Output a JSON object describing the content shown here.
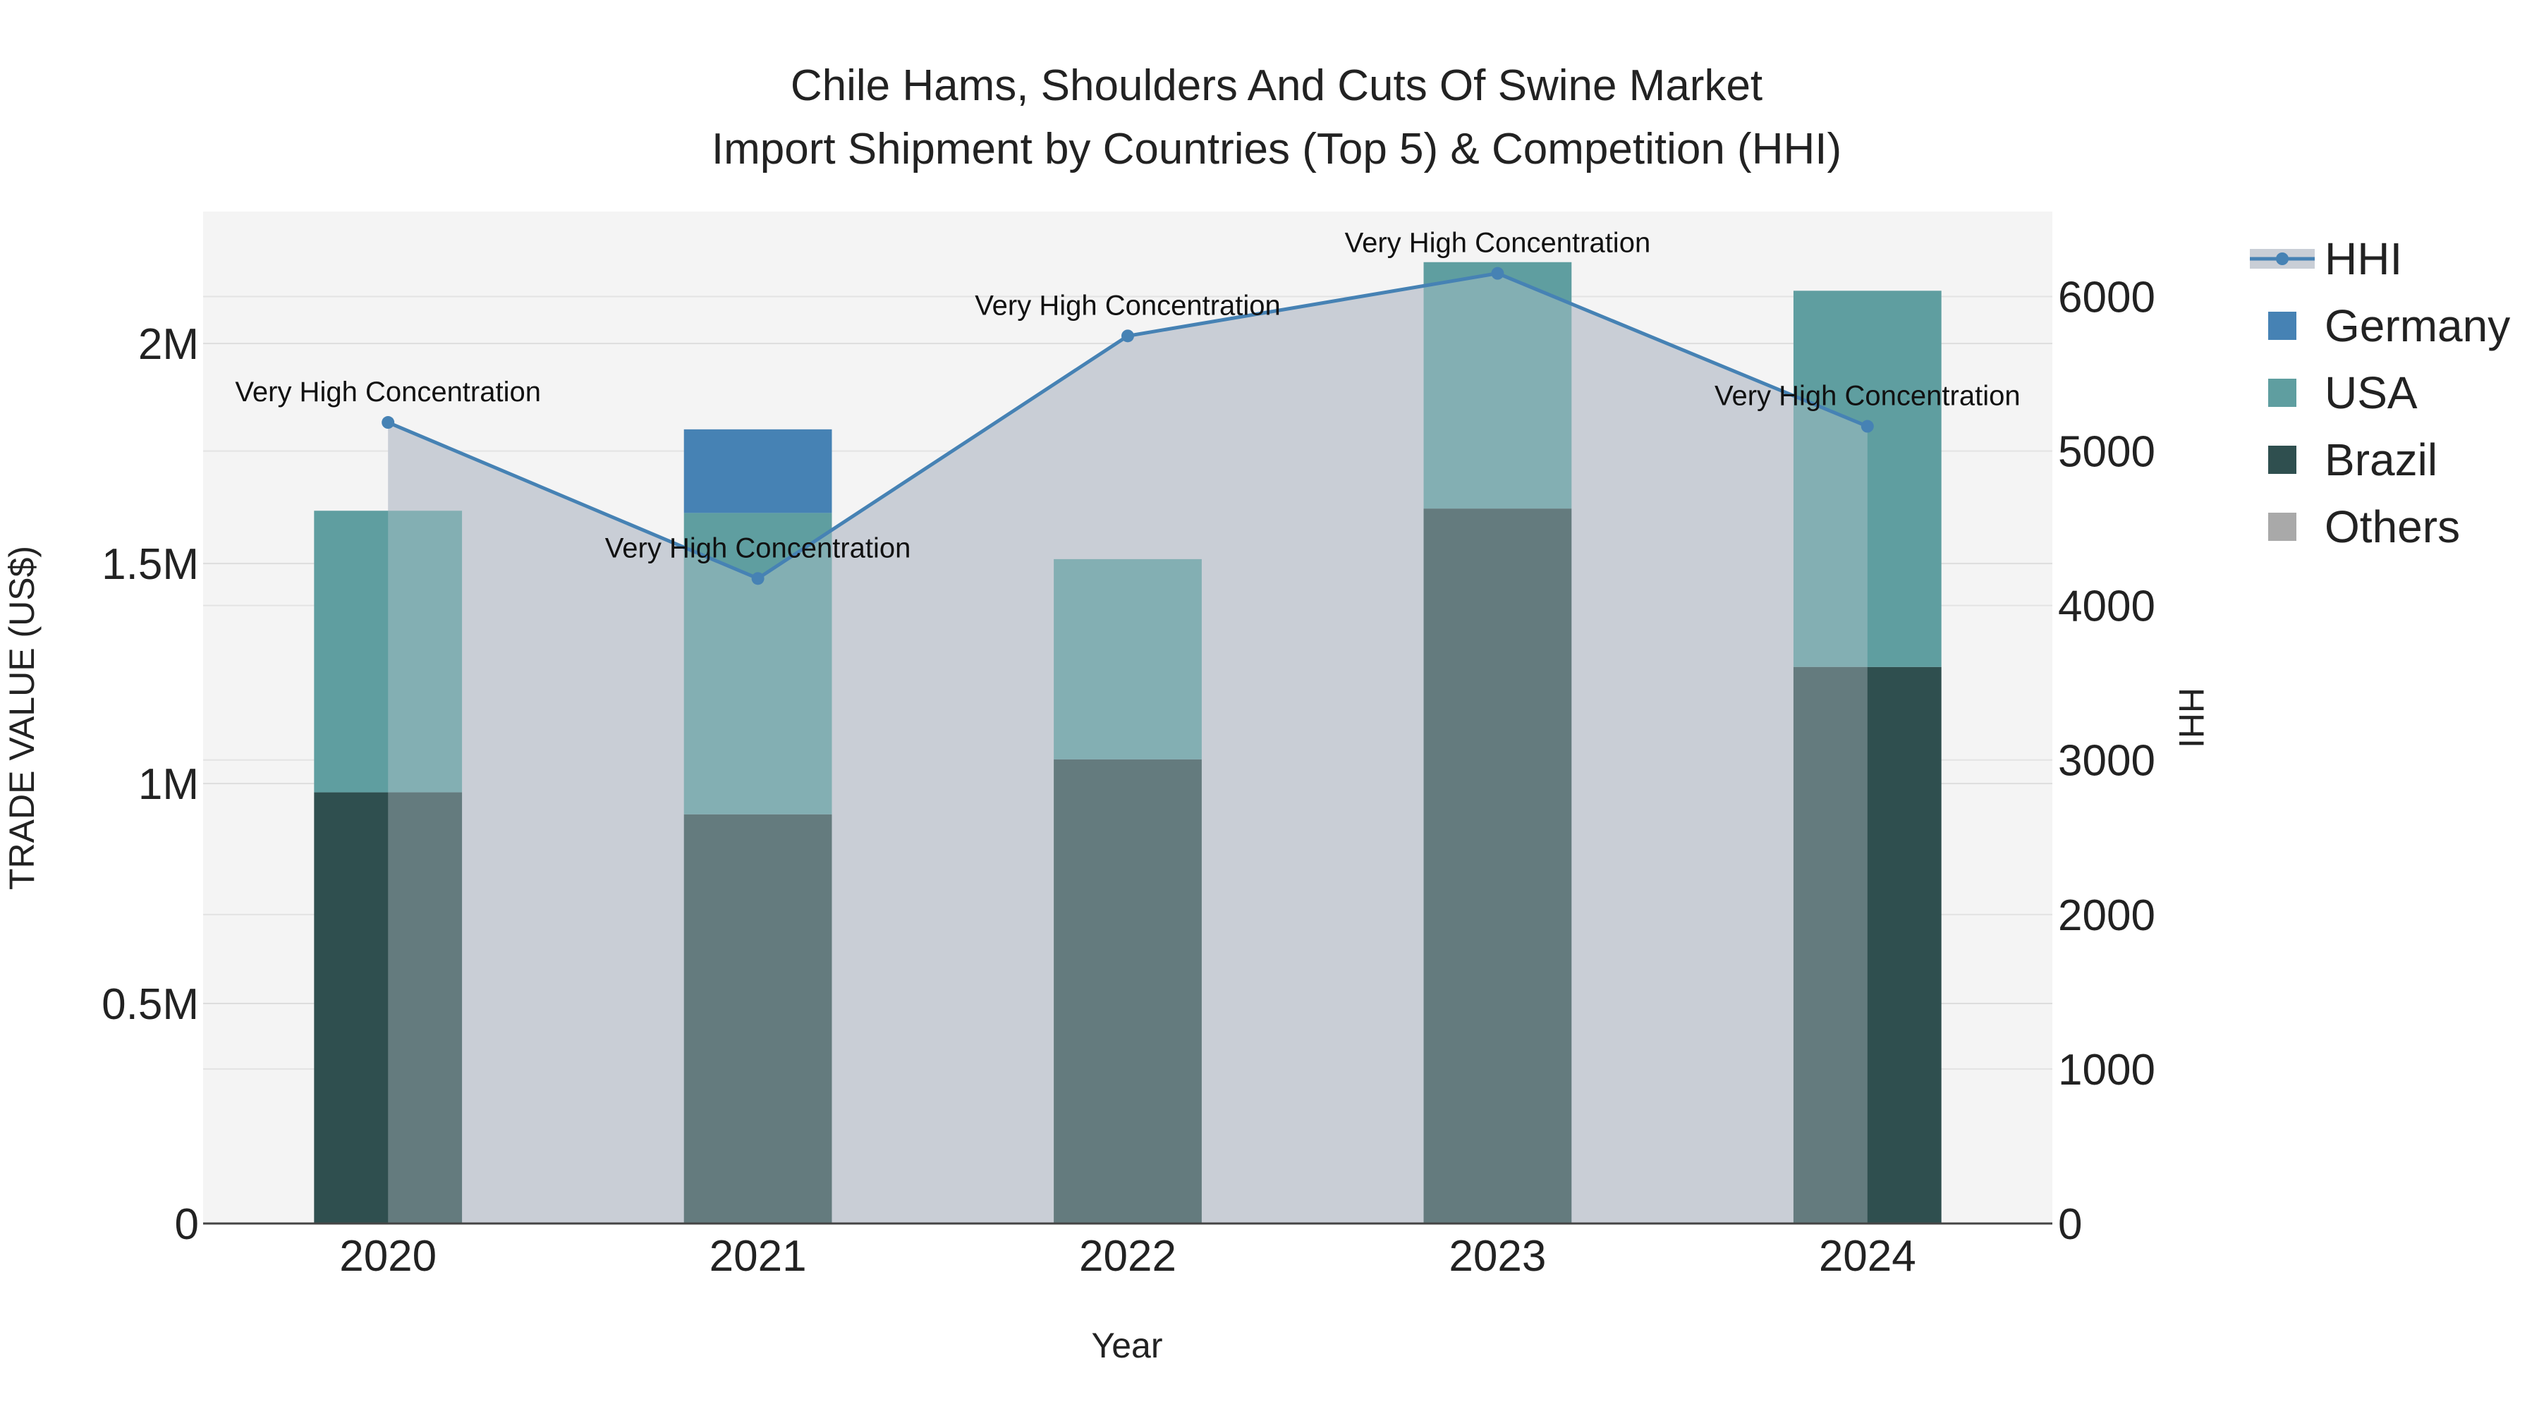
{
  "chart_data": {
    "type": "bar",
    "title_line1": "Chile Hams, Shoulders And Cuts Of Swine Market",
    "title_line2": "Import Shipment by Countries (Top 5) & Competition (HHI)",
    "xlabel": "Year",
    "ylabel": "TRADE VALUE (US$)",
    "y2label": "HHI",
    "categories": [
      "2020",
      "2021",
      "2022",
      "2023",
      "2024"
    ],
    "ylim": [
      0,
      2300000
    ],
    "y2lim": [
      0,
      6550
    ],
    "yticks": [
      {
        "value": 0,
        "label": "0"
      },
      {
        "value": 500000,
        "label": "0.5M"
      },
      {
        "value": 1000000,
        "label": "1M"
      },
      {
        "value": 1500000,
        "label": "1.5M"
      },
      {
        "value": 2000000,
        "label": "2M"
      }
    ],
    "y2ticks": [
      {
        "value": 0,
        "label": "0"
      },
      {
        "value": 1000,
        "label": "1000"
      },
      {
        "value": 2000,
        "label": "2000"
      },
      {
        "value": 3000,
        "label": "3000"
      },
      {
        "value": 4000,
        "label": "4000"
      },
      {
        "value": 5000,
        "label": "5000"
      },
      {
        "value": 6000,
        "label": "6000"
      }
    ],
    "series": [
      {
        "name": "Brazil",
        "color": "#2f4f4f",
        "values": [
          980000,
          930000,
          1055000,
          1625000,
          1265000
        ]
      },
      {
        "name": "USA",
        "color": "#5f9ea0",
        "values": [
          640000,
          685000,
          455000,
          560000,
          855000
        ]
      },
      {
        "name": "Germany",
        "color": "#4682b4",
        "values": [
          0,
          190000,
          0,
          0,
          0
        ]
      },
      {
        "name": "Others",
        "color": "#a9a9a9",
        "values": [
          0,
          0,
          0,
          0,
          0
        ]
      }
    ],
    "hhi": {
      "name": "HHI",
      "color": "#4682b4",
      "fill": "#c9ced6",
      "values": [
        5185,
        4175,
        5745,
        6150,
        5160
      ],
      "labels": [
        "Very High Concentration",
        "Very High Concentration",
        "Very High Concentration",
        "Very High Concentration",
        "Very High Concentration"
      ]
    },
    "legend": [
      "HHI",
      "Germany",
      "USA",
      "Brazil",
      "Others"
    ]
  }
}
